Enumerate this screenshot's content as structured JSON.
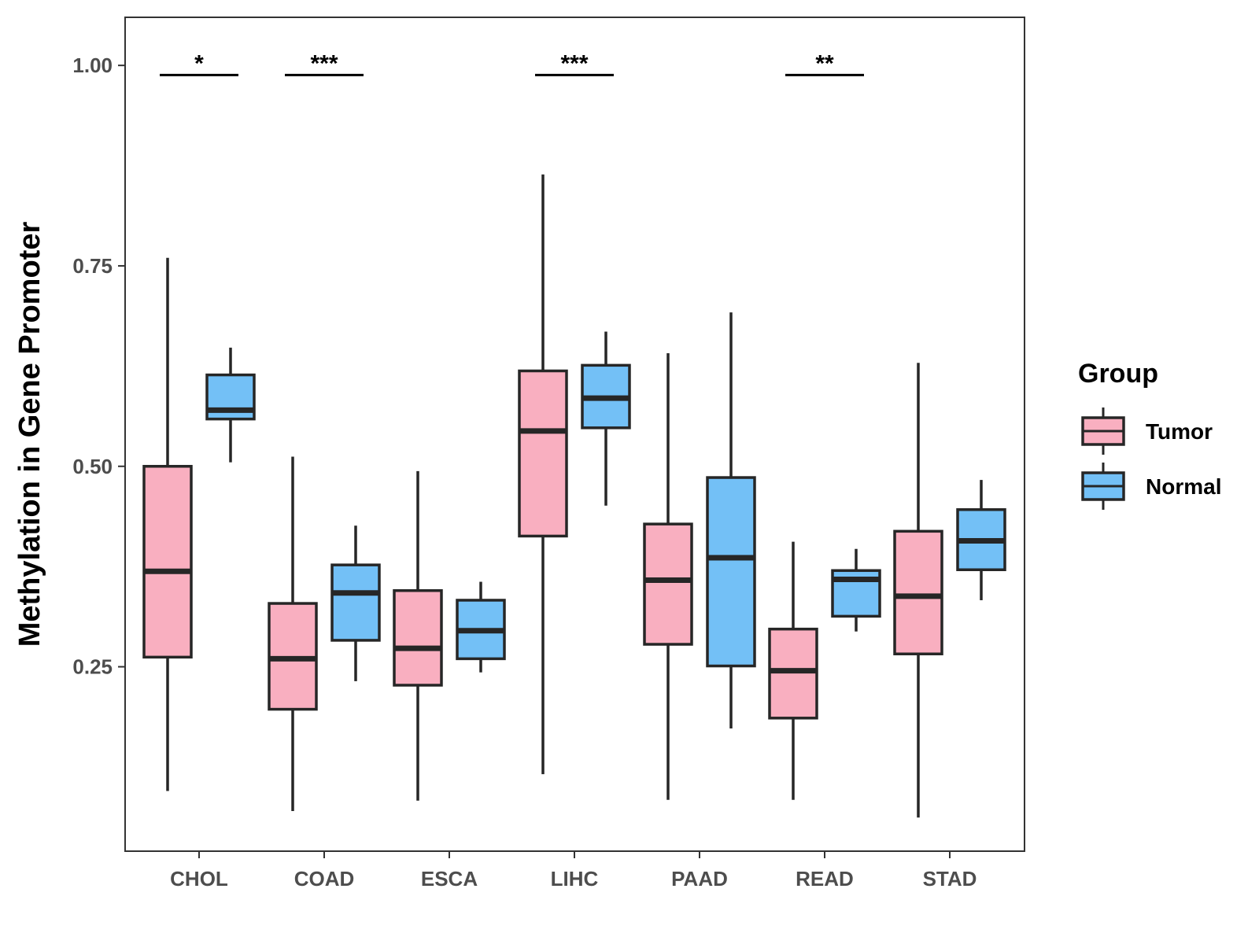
{
  "chart_data": {
    "type": "boxplot",
    "title": "",
    "xlabel": "",
    "ylabel": "Methylation in Gene Promoter",
    "ylim": [
      0.02,
      1.06
    ],
    "yticks": [
      0.25,
      0.5,
      0.75,
      1.0
    ],
    "ytick_labels": [
      "0.25",
      "0.50",
      "0.75",
      "1.00"
    ],
    "categories": [
      "CHOL",
      "COAD",
      "ESCA",
      "LIHC",
      "PAAD",
      "READ",
      "STAD"
    ],
    "legend": {
      "title": "Group",
      "position": "right",
      "entries": [
        {
          "label": "Tumor",
          "color": "#F9AFC0"
        },
        {
          "label": "Normal",
          "color": "#73C0F6"
        }
      ]
    },
    "series": [
      {
        "name": "Tumor",
        "color": "#F9AFC0",
        "boxes": [
          {
            "min": 0.095,
            "q1": 0.262,
            "median": 0.369,
            "q3": 0.5,
            "max": 0.76
          },
          {
            "min": 0.07,
            "q1": 0.197,
            "median": 0.26,
            "q3": 0.329,
            "max": 0.512
          },
          {
            "min": 0.083,
            "q1": 0.227,
            "median": 0.273,
            "q3": 0.345,
            "max": 0.494
          },
          {
            "min": 0.116,
            "q1": 0.413,
            "median": 0.544,
            "q3": 0.619,
            "max": 0.864
          },
          {
            "min": 0.084,
            "q1": 0.278,
            "median": 0.358,
            "q3": 0.428,
            "max": 0.641
          },
          {
            "min": 0.084,
            "q1": 0.186,
            "median": 0.245,
            "q3": 0.297,
            "max": 0.406
          },
          {
            "min": 0.062,
            "q1": 0.266,
            "median": 0.338,
            "q3": 0.419,
            "max": 0.629
          }
        ]
      },
      {
        "name": "Normal",
        "color": "#73C0F6",
        "boxes": [
          {
            "min": 0.505,
            "q1": 0.559,
            "median": 0.57,
            "q3": 0.614,
            "max": 0.648
          },
          {
            "min": 0.232,
            "q1": 0.283,
            "median": 0.342,
            "q3": 0.377,
            "max": 0.426
          },
          {
            "min": 0.243,
            "q1": 0.26,
            "median": 0.295,
            "q3": 0.333,
            "max": 0.356
          },
          {
            "min": 0.451,
            "q1": 0.548,
            "median": 0.585,
            "q3": 0.626,
            "max": 0.668
          },
          {
            "min": 0.173,
            "q1": 0.251,
            "median": 0.386,
            "q3": 0.486,
            "max": 0.692
          },
          {
            "min": 0.294,
            "q1": 0.313,
            "median": 0.359,
            "q3": 0.37,
            "max": 0.397
          },
          {
            "min": 0.333,
            "q1": 0.371,
            "median": 0.407,
            "q3": 0.446,
            "max": 0.483
          }
        ]
      }
    ],
    "annotations": [
      {
        "category": "CHOL",
        "label": "*",
        "y": 0.988
      },
      {
        "category": "COAD",
        "label": "***",
        "y": 0.988
      },
      {
        "category": "LIHC",
        "label": "***",
        "y": 0.988
      },
      {
        "category": "READ",
        "label": "**",
        "y": 0.988
      }
    ]
  }
}
